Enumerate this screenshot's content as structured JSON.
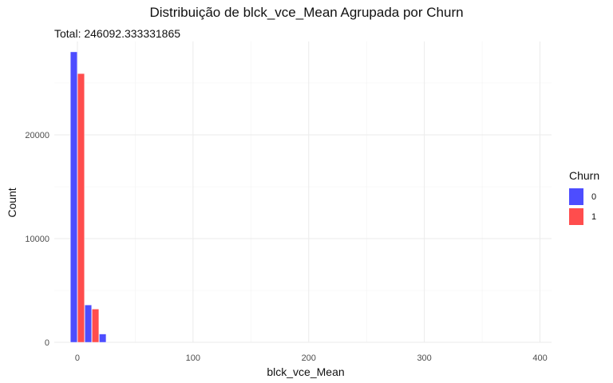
{
  "chart_data": {
    "type": "bar",
    "title": "Distribuição de blck_vce_Mean Agrupada por Churn",
    "subtitle": "Total: 246092.333331865",
    "xlabel": "blck_vce_Mean",
    "ylabel": "Count",
    "xlim": [
      -20,
      410
    ],
    "ylim": [
      0,
      29000
    ],
    "x_ticks": [
      0,
      100,
      200,
      300,
      400
    ],
    "y_ticks": [
      0,
      10000,
      20000
    ],
    "grid": true,
    "legend": {
      "title": "Churn",
      "position": "right"
    },
    "bin_width": 12.5,
    "bin_starts": [
      -6.25,
      6.25,
      18.75,
      31.25,
      43.75,
      56.25
    ],
    "series": [
      {
        "name": "0",
        "color": "#4D4DFF",
        "values": [
          28000,
          3600,
          800,
          200,
          80,
          40
        ]
      },
      {
        "name": "1",
        "color": "#FF4D4D",
        "values": [
          25900,
          3200,
          700,
          180,
          70,
          35
        ]
      }
    ]
  }
}
